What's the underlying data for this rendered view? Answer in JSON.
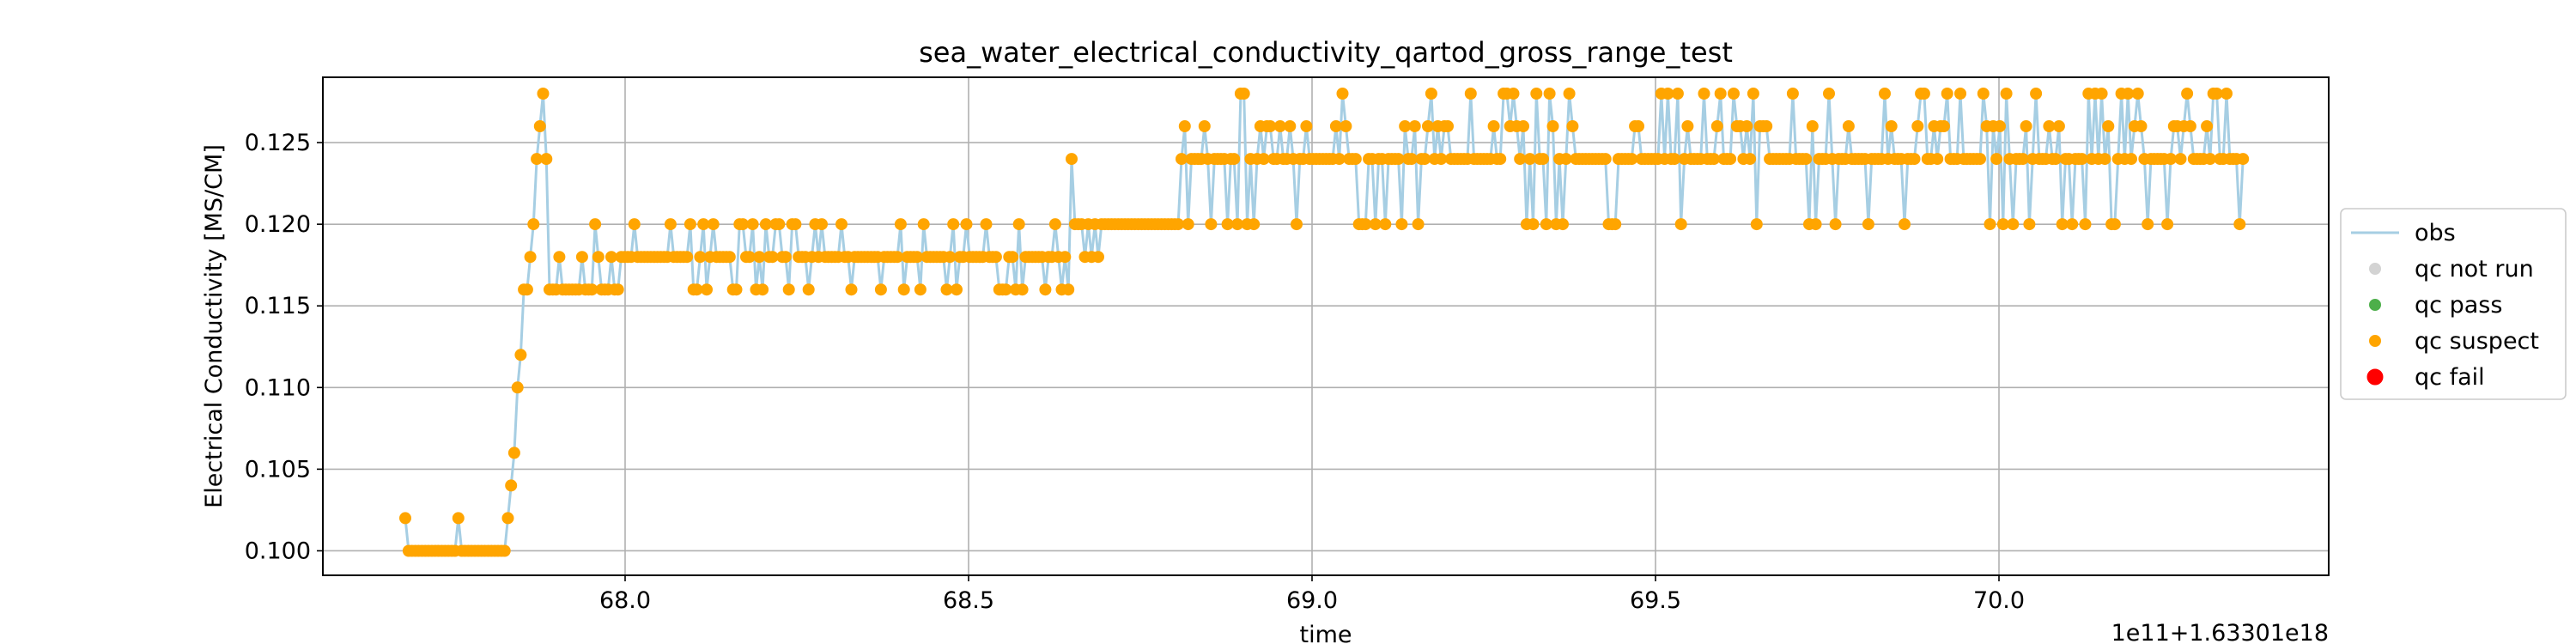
{
  "chart_data": {
    "type": "line",
    "title": "sea_water_electrical_conductivity_qartod_gross_range_test",
    "xlabel": "time",
    "ylabel": "Electrical Conductivity [MS/CM]",
    "x_offset_label": "1e11+1.63301e18",
    "xlim": [
      67.56,
      70.48
    ],
    "ylim": [
      0.0985,
      0.129
    ],
    "x_ticks": [
      68.0,
      68.5,
      69.0,
      69.5,
      70.0
    ],
    "x_tick_labels": [
      "68.0",
      "68.5",
      "69.0",
      "69.5",
      "70.0"
    ],
    "y_ticks": [
      0.1,
      0.105,
      0.11,
      0.115,
      0.12,
      0.125
    ],
    "y_tick_labels": [
      "0.100",
      "0.105",
      "0.110",
      "0.115",
      "0.120",
      "0.125"
    ],
    "grid": true,
    "legend_position": "outside-right",
    "legend": [
      {
        "label": "obs",
        "kind": "line",
        "color": "#a6cee3"
      },
      {
        "label": "qc not run",
        "kind": "dot",
        "color": "#d3d3d3"
      },
      {
        "label": "qc pass",
        "kind": "dot",
        "color": "#4daf4a"
      },
      {
        "label": "qc suspect",
        "kind": "dot",
        "color": "#ffa500"
      },
      {
        "label": "qc fail",
        "kind": "dot",
        "color": "#ff0000"
      }
    ],
    "x_range": [
      67.68,
      70.36
    ],
    "points_count": 560,
    "series": [
      {
        "name": "obs",
        "segments": [
          {
            "x_start": 67.68,
            "x_end": 67.82,
            "base": 0.1,
            "alt": [
              0.102
            ],
            "p_alt": 0.08,
            "ramp_to": null
          },
          {
            "x_start": 67.82,
            "x_end": 67.89,
            "base": null,
            "alt": [],
            "p_alt": 0,
            "ramp_to": [
              0.1,
              0.102,
              0.104,
              0.106,
              0.11,
              0.112,
              0.116,
              0.118,
              0.12,
              0.124,
              0.126,
              0.128,
              0.124
            ]
          },
          {
            "x_start": 67.89,
            "x_end": 67.98,
            "base": 0.116,
            "alt": [
              0.118,
              0.12
            ],
            "p_alt": 0.25,
            "ramp_to": null
          },
          {
            "x_start": 67.98,
            "x_end": 68.65,
            "base": 0.118,
            "alt": [
              0.116,
              0.12
            ],
            "p_alt": 0.3,
            "ramp_to": null
          },
          {
            "x_start": 68.65,
            "x_end": 68.81,
            "base": 0.12,
            "alt": [
              0.118,
              0.124
            ],
            "p_alt": 0.3,
            "ramp_to": null
          },
          {
            "x_start": 68.81,
            "x_end": 70.36,
            "base": 0.124,
            "alt": [
              0.126,
              0.128,
              0.12
            ],
            "p_alt": 0.45,
            "ramp_to": null
          }
        ],
        "qc_flag": "qc suspect"
      }
    ]
  }
}
